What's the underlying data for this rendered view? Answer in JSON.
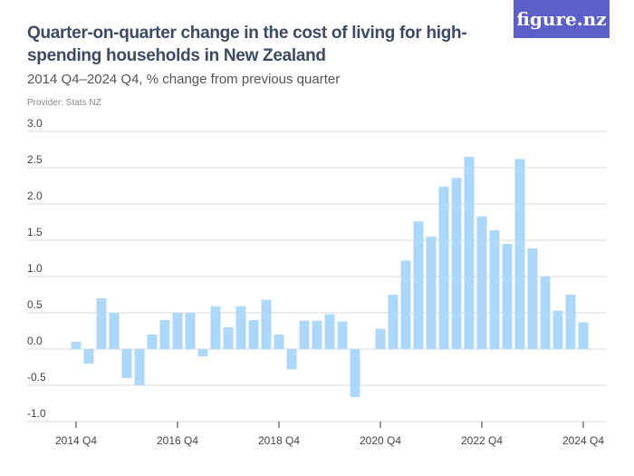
{
  "header": {
    "title": "Quarter-on-quarter change in the cost of living for high-spending households in New Zealand",
    "subtitle": "2014 Q4–2024 Q4, % change from previous quarter",
    "provider": "Provider: Stats NZ",
    "logo": "figure.nz"
  },
  "chart_data": {
    "type": "bar",
    "title": "Quarter-on-quarter change in the cost of living for high-spending households in New Zealand",
    "subtitle": "2014 Q4–2024 Q4, % change from previous quarter",
    "ylim": [
      -1.0,
      3.0
    ],
    "yticks": [
      "3.0",
      "2.5",
      "2.0",
      "1.5",
      "1.0",
      "0.5",
      "0.0",
      "-0.5",
      "-1.0"
    ],
    "xticks": [
      "2014 Q4",
      "2016 Q4",
      "2018 Q4",
      "2020 Q4",
      "2022 Q4",
      "2024 Q4"
    ],
    "grid": true,
    "color": "#aed8fa",
    "categories": [
      "2014 Q4",
      "2015 Q1",
      "2015 Q2",
      "2015 Q3",
      "2015 Q4",
      "2016 Q1",
      "2016 Q2",
      "2016 Q3",
      "2016 Q4",
      "2017 Q1",
      "2017 Q2",
      "2017 Q3",
      "2017 Q4",
      "2018 Q1",
      "2018 Q2",
      "2018 Q3",
      "2018 Q4",
      "2019 Q1",
      "2019 Q2",
      "2019 Q3",
      "2019 Q4",
      "2020 Q1",
      "2020 Q2",
      "2020 Q3",
      "2020 Q4",
      "2021 Q1",
      "2021 Q2",
      "2021 Q3",
      "2021 Q4",
      "2022 Q1",
      "2022 Q2",
      "2022 Q3",
      "2022 Q4",
      "2023 Q1",
      "2023 Q2",
      "2023 Q3",
      "2023 Q4",
      "2024 Q1",
      "2024 Q2",
      "2024 Q3",
      "2024 Q4"
    ],
    "values": [
      0.1,
      -0.2,
      0.7,
      0.5,
      -0.4,
      -0.5,
      0.2,
      0.4,
      0.5,
      0.5,
      -0.1,
      0.59,
      0.3,
      0.59,
      0.4,
      0.68,
      0.2,
      -0.28,
      0.39,
      0.39,
      0.48,
      0.38,
      -0.66,
      0.0,
      0.28,
      0.75,
      1.22,
      1.76,
      1.55,
      2.24,
      2.36,
      2.65,
      1.83,
      1.64,
      1.45,
      2.62,
      1.39,
      1.0,
      0.53,
      0.75,
      0.37
    ]
  }
}
